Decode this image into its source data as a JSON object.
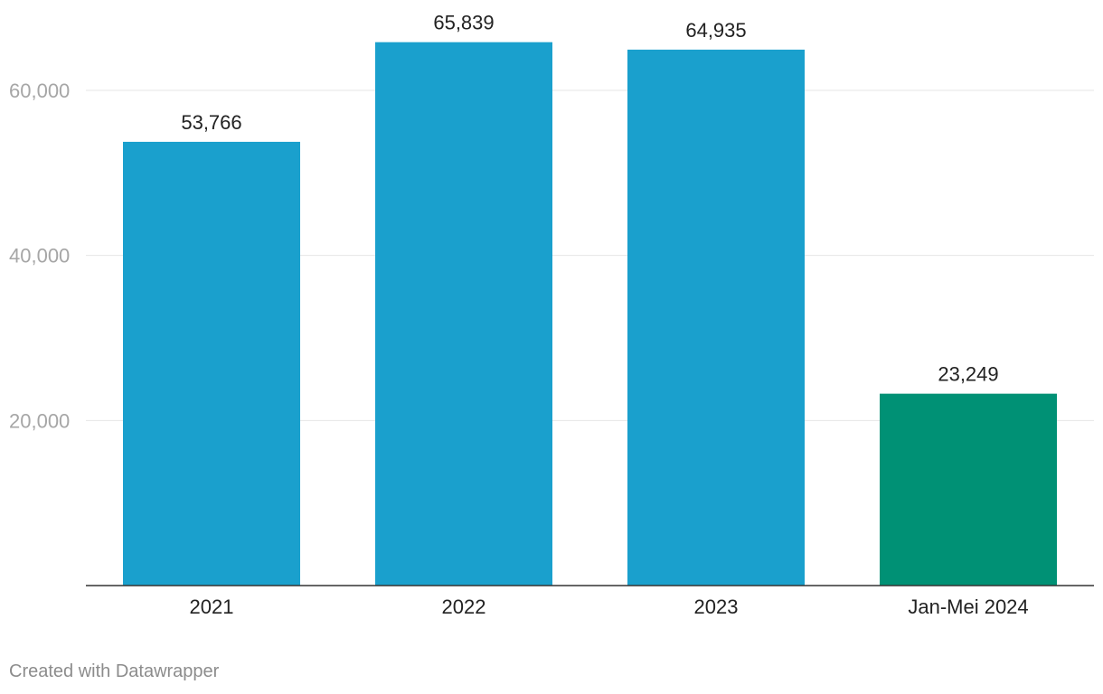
{
  "chart_data": {
    "type": "bar",
    "categories": [
      "2021",
      "2022",
      "2023",
      "Jan-Mei 2024"
    ],
    "values": [
      53766,
      65839,
      64935,
      23249
    ],
    "value_labels": [
      "53,766",
      "65,839",
      "64,935",
      "23,249"
    ],
    "bar_colors": [
      "#1aa0cd",
      "#1aa0cd",
      "#1aa0cd",
      "#009175"
    ],
    "y_ticks": [
      20000,
      40000,
      60000
    ],
    "y_tick_labels": [
      "20,000",
      "40,000",
      "60,000"
    ],
    "ylim": [
      0,
      71000
    ],
    "grid": true,
    "title": "",
    "xlabel": "",
    "ylabel": ""
  },
  "footer": {
    "credit": "Created with Datawrapper"
  }
}
